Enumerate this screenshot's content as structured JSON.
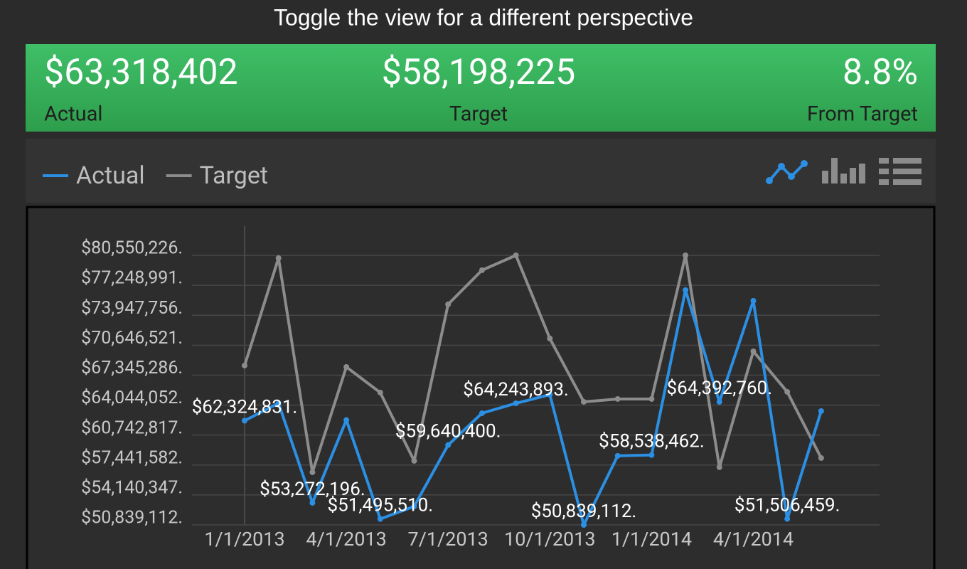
{
  "header": {
    "title": "Toggle the view for a different perspective"
  },
  "summary": {
    "actual": {
      "value": "$63,318,402",
      "label": "Actual"
    },
    "target": {
      "value": "$58,198,225",
      "label": "Target"
    },
    "difference": {
      "value": "8.8%",
      "label": "From Target"
    }
  },
  "chart_data": {
    "type": "line",
    "categories": [
      "1/1/2013",
      null,
      null,
      "4/1/2013",
      null,
      null,
      "7/1/2013",
      null,
      null,
      "10/1/2013",
      null,
      null,
      "1/1/2014",
      null,
      null,
      "4/1/2014",
      null,
      null
    ],
    "series": [
      {
        "name": "Actual",
        "color": "#2b8fe3",
        "values": [
          62324831,
          64250000,
          53272196,
          62400000,
          51495510,
          52880000,
          59640400,
          63150000,
          64243893,
          65190000,
          50839112,
          58450000,
          58538462,
          76716000,
          64392760,
          75540000,
          51506459,
          63385000
        ],
        "value_labels": [
          "$62,324,831.",
          null,
          "$53,272,196.",
          null,
          "$51,495,510.",
          null,
          "$59,640,400.",
          null,
          "$64,243,893.",
          null,
          "$50,839,112.",
          null,
          "$58,538,462.",
          null,
          "$64,392,760.",
          null,
          "$51,506,459.",
          null
        ]
      },
      {
        "name": "Target",
        "color": "#8c8c8c",
        "values": [
          68404000,
          80245000,
          56642000,
          68247000,
          65424000,
          57896000,
          75148000,
          78912000,
          80550000,
          71384000,
          64405000,
          64719000,
          64719000,
          80550000,
          57191000,
          69972000,
          65503000,
          58210000
        ]
      }
    ],
    "ylim": [
      50839112,
      80550226
    ],
    "yticks": [
      {
        "value": 50839112,
        "label": "$50,839,112."
      },
      {
        "value": 54140347,
        "label": "$54,140,347."
      },
      {
        "value": 57441582,
        "label": "$57,441,582."
      },
      {
        "value": 60742817,
        "label": "$60,742,817."
      },
      {
        "value": 64044052,
        "label": "$64,044,052."
      },
      {
        "value": 67345286,
        "label": "$67,345,286."
      },
      {
        "value": 70646521,
        "label": "$70,646,521."
      },
      {
        "value": 73947756,
        "label": "$73,947,756."
      },
      {
        "value": 77248991,
        "label": "$77,248,991."
      },
      {
        "value": 80550226,
        "label": "$80,550,226."
      }
    ],
    "grid": true
  }
}
